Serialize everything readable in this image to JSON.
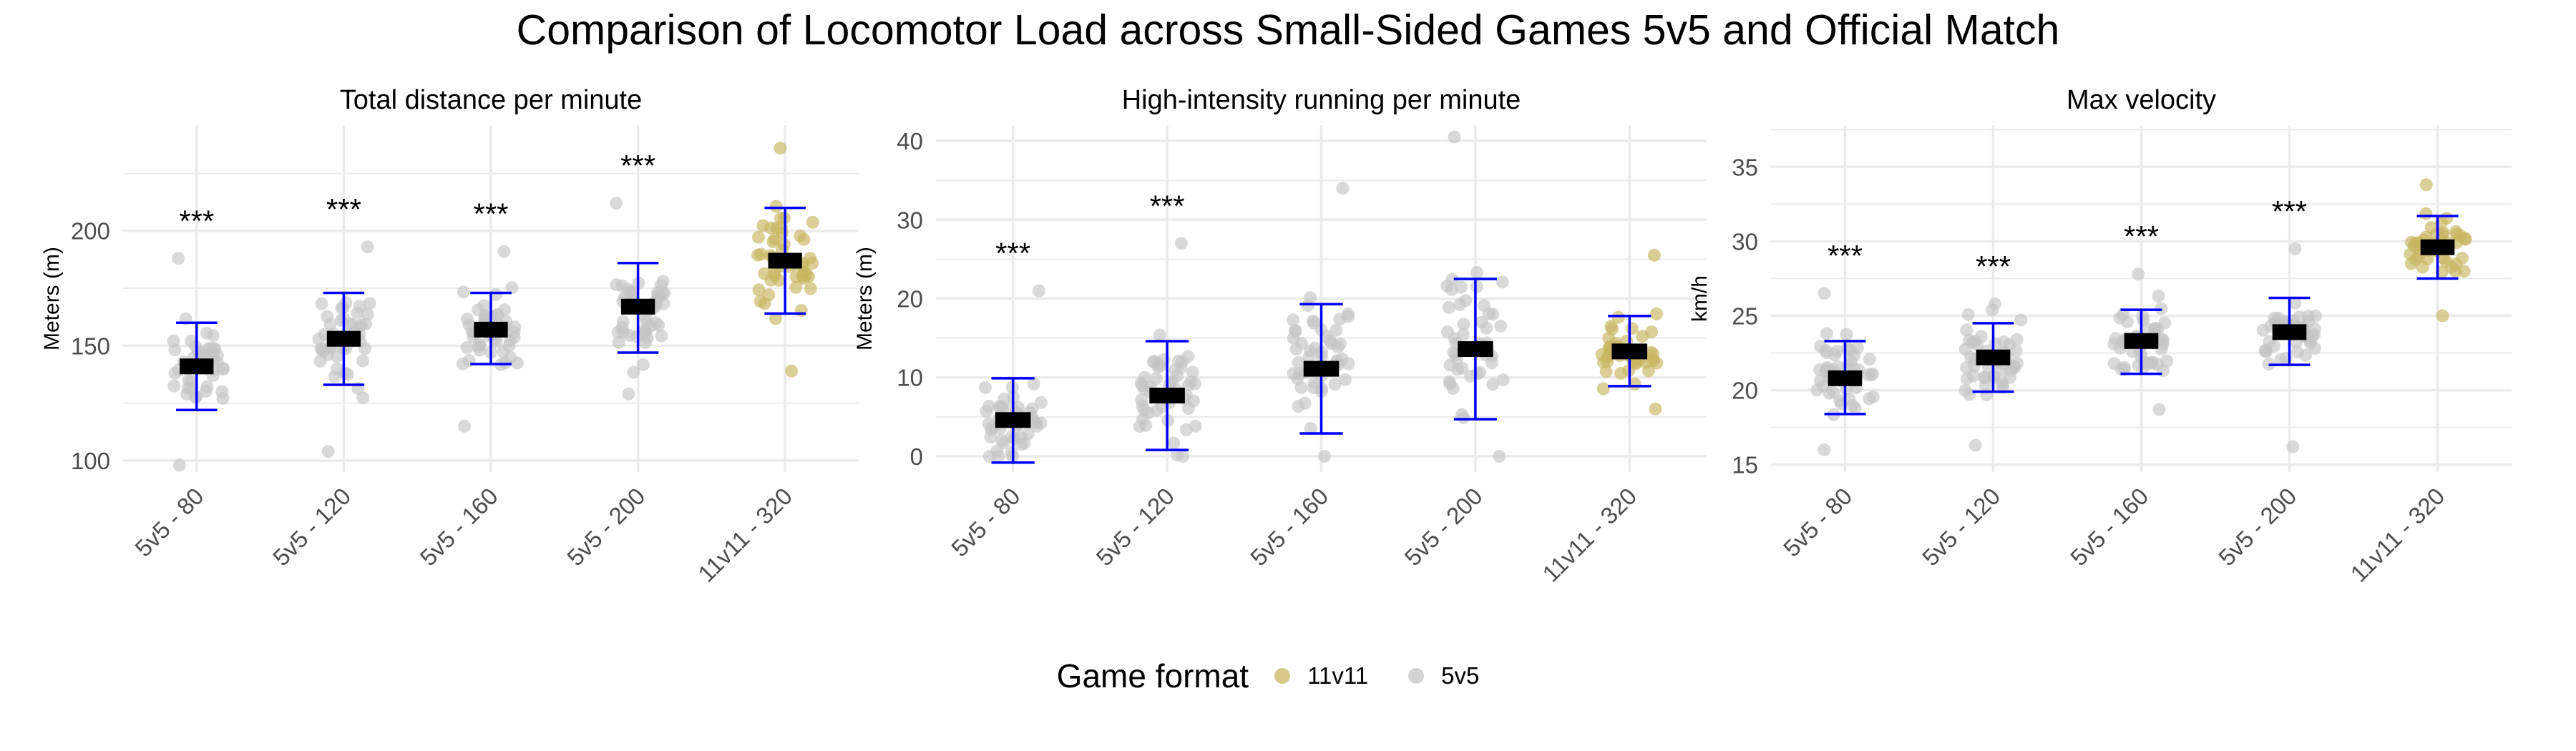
{
  "title": "Comparison of Locomotor Load across Small-Sided Games 5v5 and Official Match",
  "legend": {
    "title": "Game format",
    "items": [
      {
        "label": "11v11",
        "color": "#c8b560"
      },
      {
        "label": "5v5",
        "color": "#c4c4c4"
      }
    ]
  },
  "colors": {
    "point_11v11": "#c8b560",
    "point_5v5": "#c4c4c4",
    "errorbar": "#0000ff",
    "mean_bar": "#000000",
    "grid": "#ebebeb"
  },
  "chart_data": [
    {
      "type": "scatter",
      "title": "Total distance per minute",
      "ylabel": "Meters (m)",
      "xlabel": "",
      "categories": [
        "5v5 - 80",
        "5v5 - 120",
        "5v5 - 160",
        "5v5 - 200",
        "11v11 - 320"
      ],
      "ylim": [
        95,
        246
      ],
      "yticks": [
        100,
        150,
        200
      ],
      "grid": true,
      "series": [
        {
          "category": "5v5 - 80",
          "format": "5v5",
          "mean": 141,
          "lower": 122,
          "upper": 160,
          "significance": "***",
          "min": 98,
          "max": 188
        },
        {
          "category": "5v5 - 120",
          "format": "5v5",
          "mean": 153,
          "lower": 133,
          "upper": 173,
          "significance": "***",
          "min": 104,
          "max": 193
        },
        {
          "category": "5v5 - 160",
          "format": "5v5",
          "mean": 157,
          "lower": 142,
          "upper": 173,
          "significance": "***",
          "min": 115,
          "max": 191
        },
        {
          "category": "5v5 - 200",
          "format": "5v5",
          "mean": 167,
          "lower": 147,
          "upper": 186,
          "significance": "***",
          "min": 129,
          "max": 212
        },
        {
          "category": "11v11 - 320",
          "format": "11v11",
          "mean": 187,
          "lower": 164,
          "upper": 210,
          "significance": "",
          "min": 139,
          "max": 236
        }
      ]
    },
    {
      "type": "scatter",
      "title": "High-intensity running per minute",
      "ylabel": "Meters (m)",
      "xlabel": "",
      "categories": [
        "5v5 - 80",
        "5v5 - 120",
        "5v5 - 160",
        "5v5 - 200",
        "11v11 - 320"
      ],
      "ylim": [
        -2,
        42
      ],
      "yticks": [
        0,
        10,
        20,
        30,
        40
      ],
      "grid": true,
      "series": [
        {
          "category": "5v5 - 80",
          "format": "5v5",
          "mean": 4.6,
          "lower": -0.8,
          "upper": 9.9,
          "significance": "***",
          "min": 0,
          "max": 21
        },
        {
          "category": "5v5 - 120",
          "format": "5v5",
          "mean": 7.7,
          "lower": 0.8,
          "upper": 14.6,
          "significance": "***",
          "min": 0,
          "max": 27
        },
        {
          "category": "5v5 - 160",
          "format": "5v5",
          "mean": 11.1,
          "lower": 2.9,
          "upper": 19.3,
          "significance": "",
          "min": 0,
          "max": 34
        },
        {
          "category": "5v5 - 200",
          "format": "5v5",
          "mean": 13.6,
          "lower": 4.7,
          "upper": 22.5,
          "significance": "",
          "min": 0,
          "max": 40.5
        },
        {
          "category": "11v11 - 320",
          "format": "11v11",
          "mean": 13.3,
          "lower": 8.9,
          "upper": 17.8,
          "significance": "",
          "min": 6,
          "max": 25.5
        }
      ]
    },
    {
      "type": "scatter",
      "title": "Max velocity",
      "ylabel": "km/h",
      "xlabel": "",
      "categories": [
        "5v5 - 80",
        "5v5 - 120",
        "5v5 - 160",
        "5v5 - 200",
        "11v11 - 320"
      ],
      "ylim": [
        14.5,
        37.8
      ],
      "yticks": [
        15,
        20,
        25,
        30,
        35
      ],
      "grid": true,
      "series": [
        {
          "category": "5v5 - 80",
          "format": "5v5",
          "mean": 20.8,
          "lower": 18.4,
          "upper": 23.3,
          "significance": "***",
          "min": 16,
          "max": 26.5
        },
        {
          "category": "5v5 - 120",
          "format": "5v5",
          "mean": 22.2,
          "lower": 19.9,
          "upper": 24.5,
          "significance": "***",
          "min": 16.3,
          "max": 25.8
        },
        {
          "category": "5v5 - 160",
          "format": "5v5",
          "mean": 23.3,
          "lower": 21.1,
          "upper": 25.4,
          "significance": "***",
          "min": 18.7,
          "max": 27.8
        },
        {
          "category": "5v5 - 200",
          "format": "5v5",
          "mean": 23.9,
          "lower": 21.7,
          "upper": 26.2,
          "significance": "***",
          "min": 16.2,
          "max": 29.5
        },
        {
          "category": "11v11 - 320",
          "format": "11v11",
          "mean": 29.6,
          "lower": 27.5,
          "upper": 31.7,
          "significance": "",
          "min": 25,
          "max": 33.8
        }
      ]
    }
  ]
}
